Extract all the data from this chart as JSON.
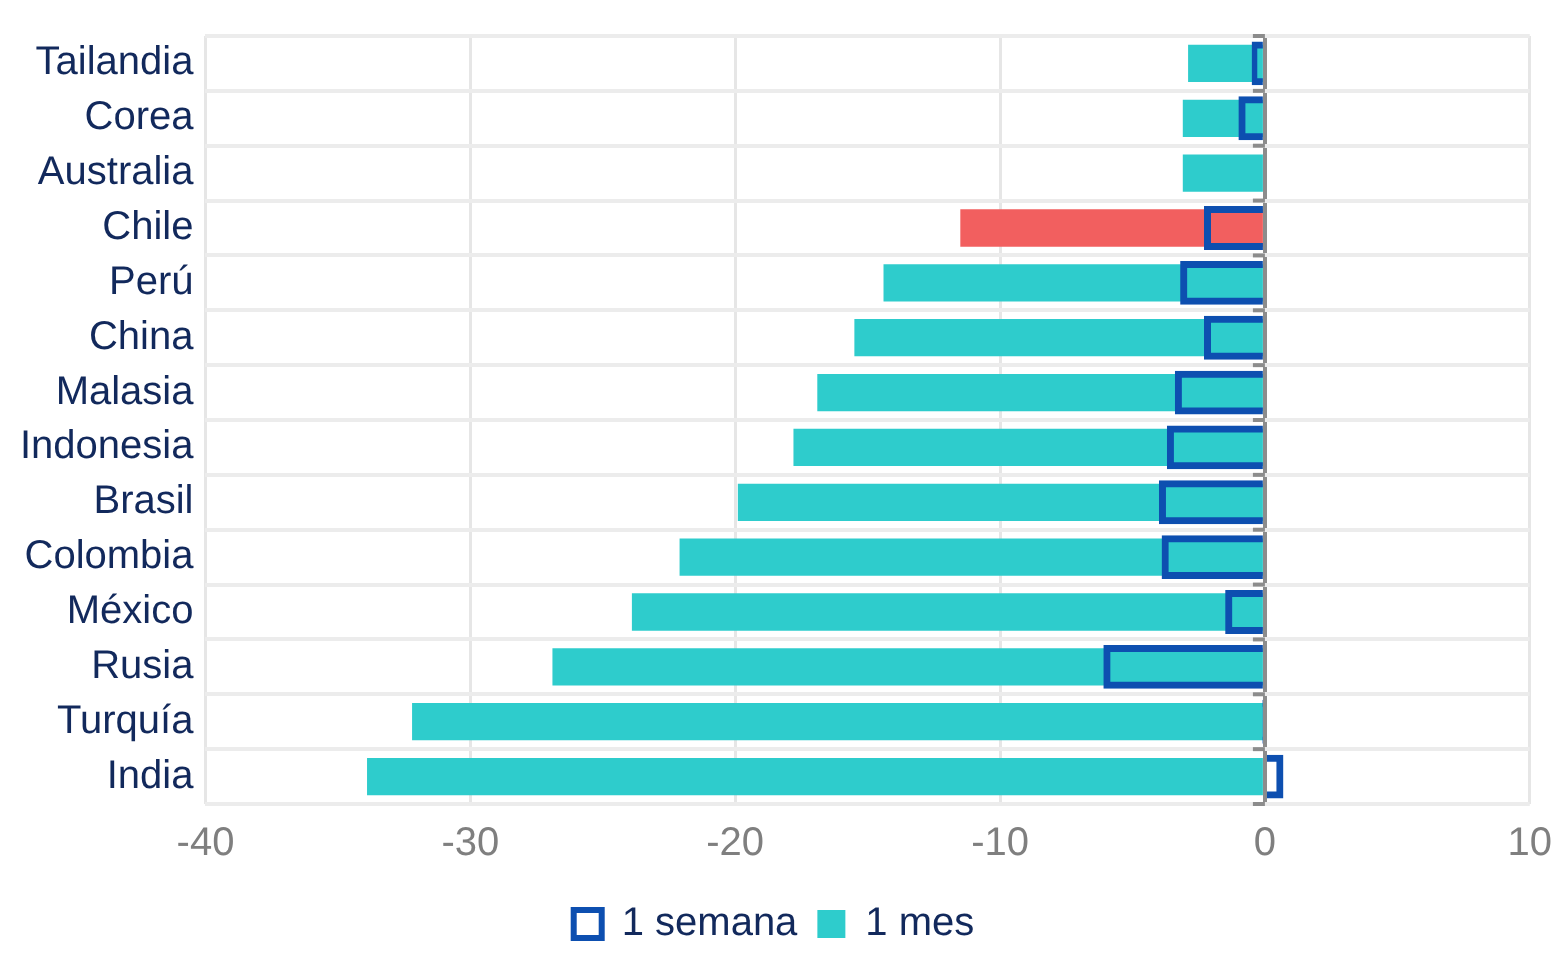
{
  "chart_data": {
    "type": "bar",
    "orientation": "horizontal",
    "categories": [
      "Tailandia",
      "Corea",
      "Australia",
      "Chile",
      "Perú",
      "China",
      "Malasia",
      "Indonesia",
      "Brasil",
      "Colombia",
      "México",
      "Rusia",
      "Turquía",
      "India"
    ],
    "series": [
      {
        "name": "1 semana",
        "color": "#0d4fb0",
        "values": [
          -0.5,
          -1.0,
          null,
          -2.3,
          -3.2,
          -2.3,
          -3.4,
          -3.7,
          -4.0,
          -3.9,
          -1.5,
          -6.1,
          -0.1,
          0.7
        ]
      },
      {
        "name": "1 mes",
        "color": "#2ecccc",
        "colors": [
          "#2ecccc",
          "#2ecccc",
          "#2ecccc",
          "#f25f5f",
          "#2ecccc",
          "#2ecccc",
          "#2ecccc",
          "#2ecccc",
          "#2ecccc",
          "#2ecccc",
          "#2ecccc",
          "#2ecccc",
          "#2ecccc",
          "#2ecccc"
        ],
        "values": [
          -2.9,
          -3.1,
          -3.1,
          -11.5,
          -14.4,
          -15.5,
          -16.9,
          -17.8,
          -19.9,
          -22.1,
          -23.9,
          -26.9,
          -32.2,
          -33.9
        ]
      }
    ],
    "xlim": [
      -40,
      10
    ],
    "xticks": [
      -40,
      -30,
      -20,
      -10,
      0,
      10
    ],
    "grid": true,
    "legend": "bottom"
  }
}
